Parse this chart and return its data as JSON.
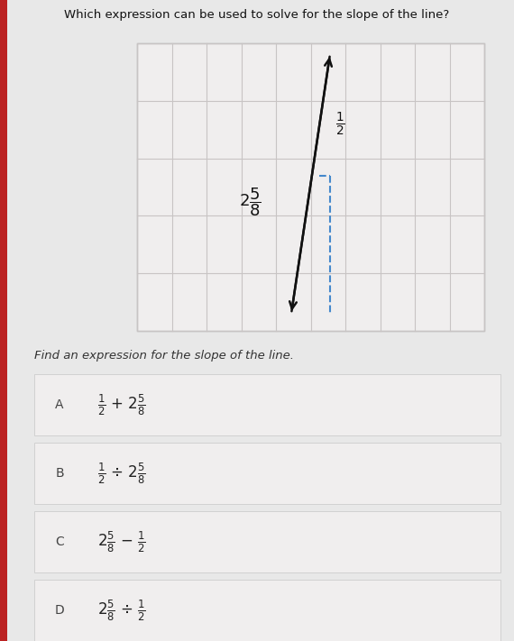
{
  "title": "Which expression can be used to solve for the slope of the line?",
  "subtitle": "Find an expression for the slope of the line.",
  "bg_color": "#e8e8e8",
  "grid_bg": "#f0eeee",
  "grid_color": "#c8c4c4",
  "grid_rows": 5,
  "grid_cols": 10,
  "arrow_color": "#111111",
  "dashed_color": "#4488cc",
  "options": [
    {
      "letter": "A"
    },
    {
      "letter": "B"
    },
    {
      "letter": "C"
    },
    {
      "letter": "D"
    }
  ],
  "option_bg": "#f0eeee",
  "option_border": "#cccccc",
  "red_bar_color": "#bb2222",
  "letter_color": "#444444",
  "expr_color": "#222222"
}
